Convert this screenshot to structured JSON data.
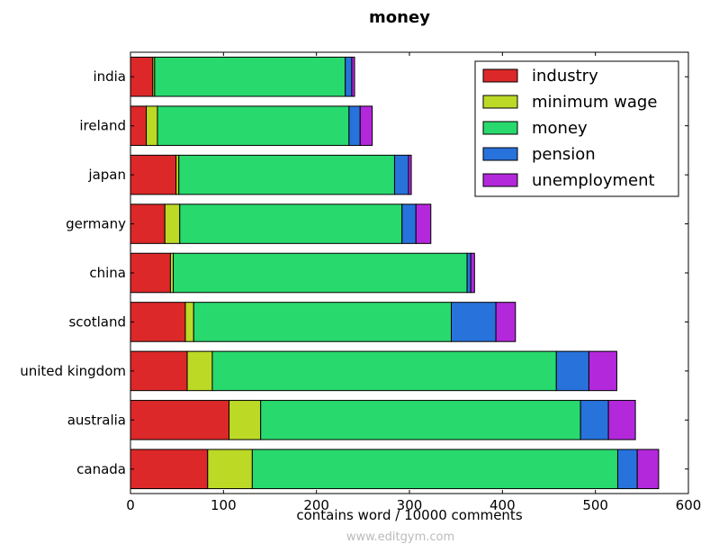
{
  "chart_data": {
    "type": "bar",
    "orientation": "horizontal",
    "stacked": true,
    "title": "money",
    "xlabel": "contains word / 10000 comments",
    "ylabel": "",
    "xlim": [
      0,
      600
    ],
    "xticks": [
      0,
      100,
      200,
      300,
      400,
      500,
      600
    ],
    "grid": false,
    "legend_position": "top-right",
    "categories": [
      "india",
      "ireland",
      "japan",
      "germany",
      "china",
      "scotland",
      "united kingdom",
      "australia",
      "canada"
    ],
    "series": [
      {
        "name": "industry",
        "color": "#dc2828",
        "values": [
          24,
          17,
          49,
          37,
          43,
          59,
          61,
          106,
          83
        ]
      },
      {
        "name": "minimum wage",
        "color": "#bcd926",
        "values": [
          2,
          12,
          3,
          16,
          3,
          9,
          27,
          34,
          48
        ]
      },
      {
        "name": "money",
        "color": "#28d96e",
        "values": [
          205,
          206,
          232,
          239,
          316,
          277,
          370,
          344,
          393
        ]
      },
      {
        "name": "pension",
        "color": "#2872dc",
        "values": [
          7,
          12,
          15,
          15,
          4,
          48,
          35,
          30,
          21
        ]
      },
      {
        "name": "unemployment",
        "color": "#b428dc",
        "values": [
          3,
          13,
          3,
          16,
          4,
          21,
          30,
          29,
          23
        ]
      }
    ],
    "watermark": "www.editgym.com"
  }
}
